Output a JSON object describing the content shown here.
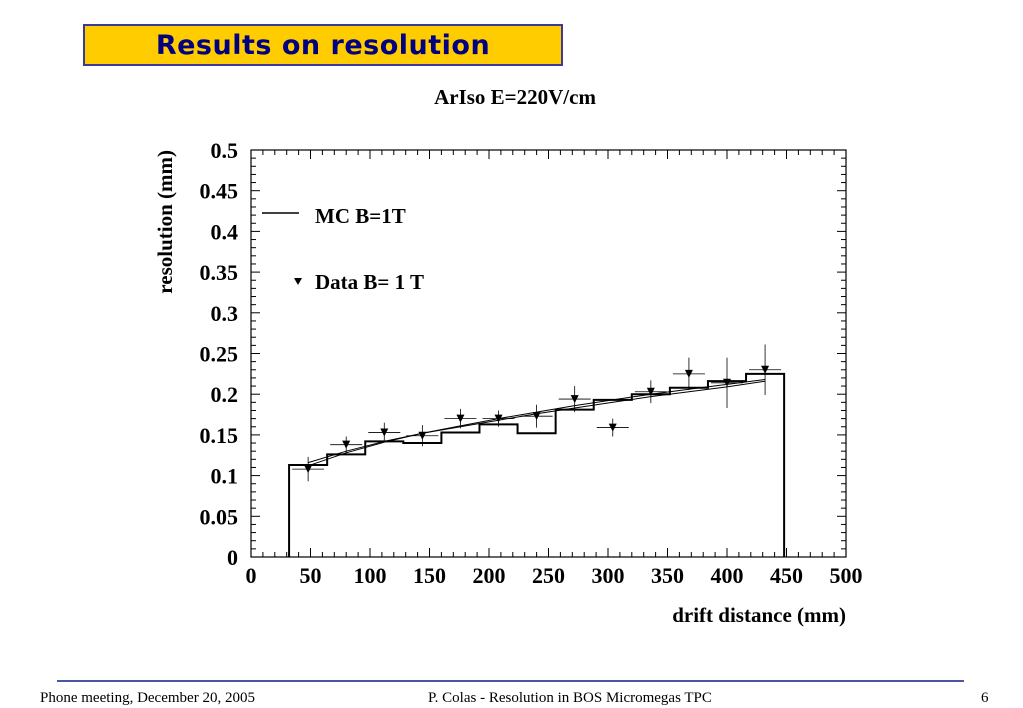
{
  "slide": {
    "title": "Results on resolution",
    "footer": {
      "left": "Phone meeting, December 20, 2005",
      "center": "P. Colas  -  Resolution in BOS Micromegas TPC",
      "page_number": "6"
    }
  },
  "chart_data": {
    "type": "scatter",
    "title": "ArIso E=220V/cm",
    "xlabel": "drift distance (mm)",
    "ylabel": "resolution (mm)",
    "xlim": [
      0,
      500
    ],
    "ylim": [
      0,
      0.5
    ],
    "x_ticks": [
      "0",
      "50",
      "100",
      "150",
      "200",
      "250",
      "300",
      "350",
      "400",
      "450",
      "500"
    ],
    "y_ticks": [
      "0",
      "0.05",
      "0.1",
      "0.15",
      "0.2",
      "0.25",
      "0.3",
      "0.35",
      "0.4",
      "0.45",
      "0.5"
    ],
    "grid": false,
    "legend_placement": "top-left",
    "series": [
      {
        "name": "MC B=1T",
        "kind": "histogram",
        "bin_edges": [
          32,
          64,
          96,
          128,
          160,
          192,
          224,
          256,
          288,
          320,
          352,
          384,
          416,
          448
        ],
        "values": [
          0.113,
          0.126,
          0.142,
          0.14,
          0.153,
          0.163,
          0.152,
          0.181,
          0.193,
          0.2,
          0.208,
          0.216,
          0.225
        ]
      },
      {
        "name": "Data B= 1 T",
        "kind": "points",
        "marker": "triangle-down",
        "x": [
          48,
          80,
          112,
          144,
          176,
          208,
          240,
          272,
          304,
          336,
          368,
          400,
          432
        ],
        "y": [
          0.108,
          0.138,
          0.153,
          0.149,
          0.17,
          0.17,
          0.173,
          0.194,
          0.159,
          0.203,
          0.225,
          0.214,
          0.23
        ],
        "yerr": [
          0.015,
          0.01,
          0.012,
          0.013,
          0.012,
          0.01,
          0.014,
          0.016,
          0.011,
          0.014,
          0.02,
          0.031,
          0.031
        ]
      }
    ],
    "fit_curves": [
      {
        "x": [
          48,
          80,
          112,
          144,
          176,
          208,
          240,
          272,
          304,
          336,
          368,
          400,
          432
        ],
        "y": [
          0.112,
          0.128,
          0.141,
          0.152,
          0.161,
          0.17,
          0.178,
          0.186,
          0.193,
          0.2,
          0.206,
          0.212,
          0.218
        ]
      },
      {
        "x": [
          48,
          80,
          112,
          144,
          176,
          208,
          240,
          272,
          304,
          336,
          368,
          400,
          432
        ],
        "y": [
          0.116,
          0.13,
          0.142,
          0.152,
          0.16,
          0.168,
          0.176,
          0.183,
          0.19,
          0.197,
          0.203,
          0.209,
          0.216
        ]
      }
    ]
  }
}
